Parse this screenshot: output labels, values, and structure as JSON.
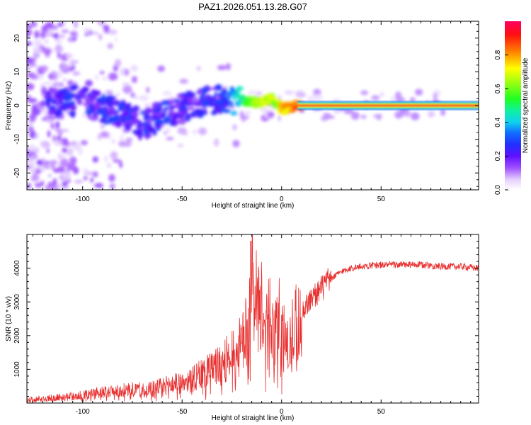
{
  "title": "PAZ1.2026.051.13.28.G07",
  "chart_data": [
    {
      "type": "heatmap",
      "xlabel": "Height of straight line (km)",
      "ylabel": "Frequency (Hz)",
      "xlim": [
        -128,
        99
      ],
      "ylim": [
        -25,
        25
      ],
      "xticks": [
        -100,
        -50,
        0,
        50
      ],
      "xtick_labels": [
        "-100",
        "-50",
        "0",
        "50"
      ],
      "yticks": [
        -20,
        -10,
        0,
        10,
        20
      ],
      "ytick_labels": [
        "-20",
        "-10",
        "0",
        "10",
        "20"
      ],
      "colorbar": {
        "label": "Normalized spectral amplitude",
        "range": [
          0,
          1
        ],
        "ticks": [
          0.0,
          0.2,
          0.4,
          0.6,
          0.8
        ],
        "tick_labels": [
          "0.0",
          "0.2",
          "0.4",
          "0.6",
          "0.8"
        ]
      },
      "ridge": [
        {
          "x": -110,
          "f": 1,
          "a": 0.3
        },
        {
          "x": -100,
          "f": 2,
          "a": 0.28
        },
        {
          "x": -90,
          "f": -1,
          "a": 0.3
        },
        {
          "x": -80,
          "f": -2,
          "a": 0.3
        },
        {
          "x": -70,
          "f": -6,
          "a": 0.3
        },
        {
          "x": -60,
          "f": -3,
          "a": 0.3
        },
        {
          "x": -50,
          "f": -1,
          "a": 0.28
        },
        {
          "x": -40,
          "f": 1,
          "a": 0.3
        },
        {
          "x": -30,
          "f": 2,
          "a": 0.3
        },
        {
          "x": -20,
          "f": 1.5,
          "a": 0.55
        },
        {
          "x": -12,
          "f": 1,
          "a": 0.75
        },
        {
          "x": -5,
          "f": 2,
          "a": 0.7
        },
        {
          "x": 0,
          "f": -1,
          "a": 0.8
        },
        {
          "x": 10,
          "f": 0,
          "a": 0.95
        },
        {
          "x": 99,
          "f": 0,
          "a": 1.0
        }
      ]
    },
    {
      "type": "line",
      "xlabel": "Height of straight line (km)",
      "ylabel": "SNR (10 * v/v)",
      "xlim": [
        -128,
        99
      ],
      "ylim": [
        0,
        5000
      ],
      "xticks": [
        -100,
        -50,
        0,
        50
      ],
      "xtick_labels": [
        "-100",
        "-50",
        "0",
        "50"
      ],
      "yticks": [
        1000,
        2000,
        3000,
        4000
      ],
      "ytick_labels": [
        "1000",
        "2000",
        "3000",
        "4000"
      ],
      "series": [
        {
          "name": "SNR",
          "color": "#e83030",
          "x": [
            -128,
            -115,
            -105,
            -95,
            -85,
            -75,
            -65,
            -55,
            -45,
            -35,
            -25,
            -20,
            -17,
            -15,
            -12,
            -8,
            -5,
            -2,
            0,
            3,
            5,
            10,
            15,
            20,
            25,
            30,
            35,
            40,
            50,
            60,
            70,
            80,
            90,
            99
          ],
          "y": [
            100,
            150,
            200,
            280,
            350,
            400,
            450,
            550,
            700,
            1000,
            1400,
            1700,
            2200,
            4000,
            2600,
            2900,
            2200,
            2700,
            2000,
            1800,
            2300,
            2700,
            3100,
            3400,
            3700,
            3900,
            4000,
            4050,
            4100,
            4100,
            4100,
            4050,
            4050,
            4000
          ]
        }
      ],
      "spikes": [
        {
          "x": -15.5,
          "y": 4800
        },
        {
          "x": 3.5,
          "y": 1100
        }
      ]
    }
  ]
}
